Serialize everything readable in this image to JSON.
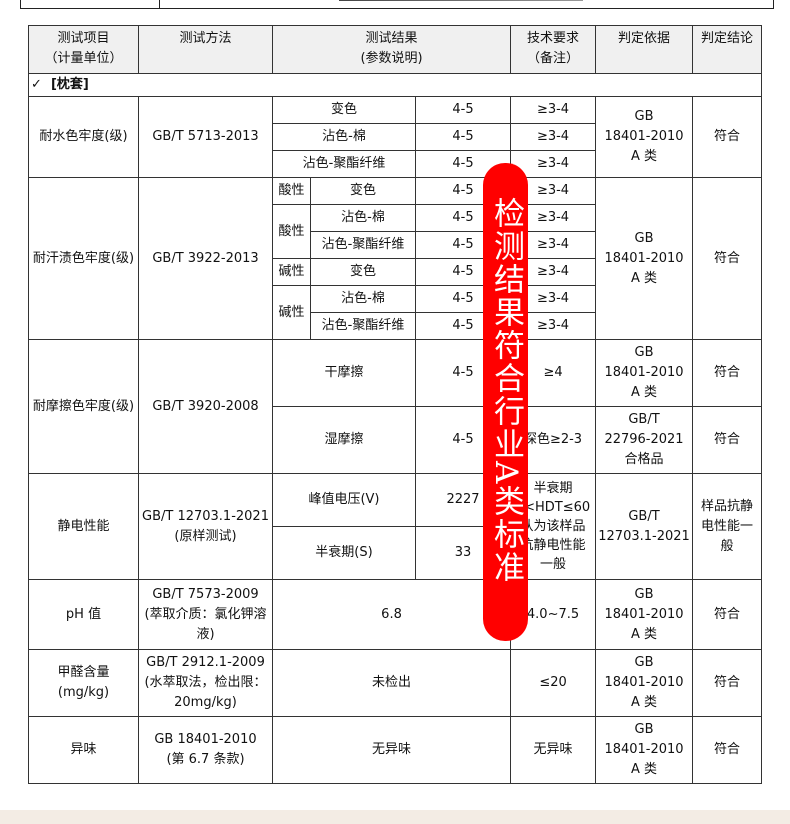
{
  "header": [
    "测试项目",
    "（计量单位）",
    "测试方法",
    "测试结果",
    "(参数说明)",
    "技术要求",
    "（备注）",
    "判定依据",
    "判定结论"
  ],
  "section": {
    "check": "✓",
    "title": "[枕套]"
  },
  "water": {
    "item": "耐水色牢度(级)",
    "method": "GB/T 5713-2013",
    "rows": [
      [
        "变色",
        "4-5",
        "≥3-4"
      ],
      [
        "沾色-棉",
        "4-5",
        "≥3-4"
      ],
      [
        "沾色-聚酯纤维",
        "4-5",
        "≥3-4"
      ]
    ],
    "basis": [
      "GB",
      "18401-2010",
      "A 类"
    ],
    "result": "符合"
  },
  "sweat": {
    "item": "耐汗渍色牢度(级)",
    "method": "GB/T 3922-2013",
    "acid": "酸性",
    "alkali": "碱性",
    "rows": [
      [
        "变色",
        "4-5",
        "≥3-4"
      ],
      [
        "沾色-棉",
        "4-5",
        "≥3-4"
      ],
      [
        "沾色-聚酯纤维",
        "4-5",
        "≥3-4"
      ],
      [
        "变色",
        "4-5",
        "≥3-4"
      ],
      [
        "沾色-棉",
        "4-5",
        "≥3-4"
      ],
      [
        "沾色-聚酯纤维",
        "4-5",
        "≥3-4"
      ]
    ],
    "basis": [
      "GB",
      "18401-2010",
      "A 类"
    ],
    "result": "符合"
  },
  "rub": {
    "item": "耐摩擦色牢度(级)",
    "method": "GB/T 3920-2008",
    "rows": [
      {
        "label": "干摩擦",
        "value": "4-5",
        "req": "≥4",
        "basis": [
          "GB",
          "18401-2010",
          "A 类"
        ],
        "result": "符合"
      },
      {
        "label": "湿摩擦",
        "value": "4-5",
        "req": "深色≥2-3",
        "basis": [
          "GB/T",
          "22796-2021",
          "合格品"
        ],
        "result": "符合"
      }
    ]
  },
  "static": {
    "item": "静电性能",
    "method": [
      "GB/T 12703.1-2021",
      "(原样测试)"
    ],
    "rows": [
      [
        "峰值电压(V)",
        "2227"
      ],
      [
        "半衰期(S)",
        "33"
      ]
    ],
    "req": [
      "半衰期",
      "0<HDT≤60",
      "认为该样品",
      "抗静电性能",
      "一般"
    ],
    "basis": [
      "GB/T",
      "12703.1-2021"
    ],
    "result": [
      "样品抗静",
      "电性能一",
      "般"
    ]
  },
  "ph": {
    "item": "pH 值",
    "method": [
      "GB/T 7573-2009",
      "(萃取介质：氯化钾溶",
      "液)"
    ],
    "value": "6.8",
    "req": "4.0~7.5",
    "basis": [
      "GB",
      "18401-2010",
      "A 类"
    ],
    "result": "符合"
  },
  "formaldehyde": {
    "item": [
      "甲醛含量",
      "(mg/kg)"
    ],
    "method": [
      "GB/T 2912.1-2009",
      "(水萃取法，检出限：",
      "20mg/kg)"
    ],
    "value": "未检出",
    "req": "≤20",
    "basis": [
      "GB",
      "18401-2010",
      "A 类"
    ],
    "result": "符合"
  },
  "odor": {
    "item": "异味",
    "method": [
      "GB 18401-2010",
      "(第 6.7 条款)"
    ],
    "value": "无异味",
    "req": "无异味",
    "basis": [
      "GB",
      "18401-2010",
      "A 类"
    ],
    "result": "符合"
  },
  "overlay": {
    "text": "检测结果符合行业A类标准",
    "color": "#ff0000"
  }
}
